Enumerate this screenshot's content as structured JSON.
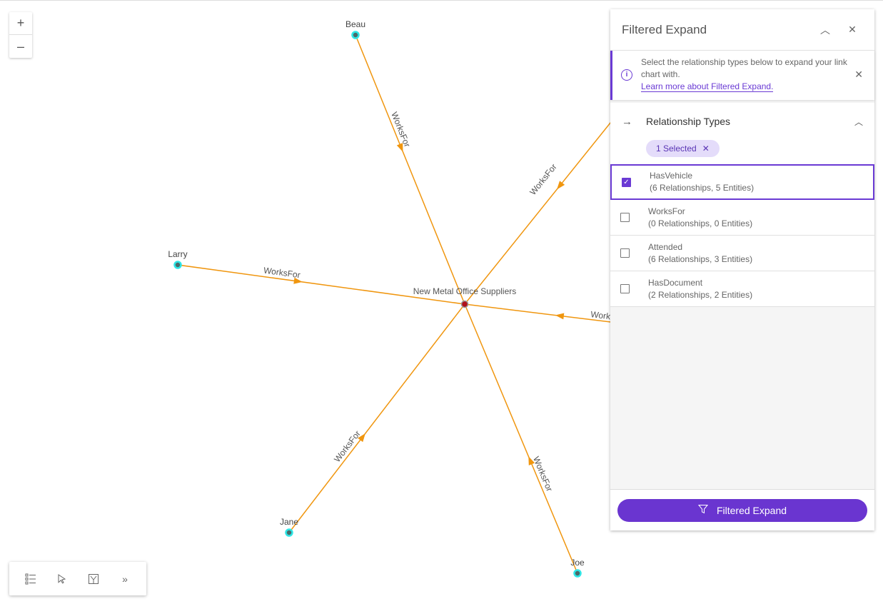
{
  "graph": {
    "center": "New Metal Office Suppliers",
    "nodes": [
      "Beau",
      "Larry",
      "Jane",
      "Joe",
      "",
      ""
    ],
    "edge_label": "WorksFor",
    "edge_color": "#f0960f",
    "node_color": "#2ee6e6",
    "center_color": "#b0111a"
  },
  "zoom": {
    "in": "+",
    "out": "–"
  },
  "toolbar": {
    "icons": [
      "legend-icon",
      "select-icon",
      "layout-icon",
      "expand-icon"
    ],
    "more": "»"
  },
  "panel": {
    "title": "Filtered Expand",
    "notice": {
      "text": "Select the relationship types below to expand your link chart with.",
      "link": "Learn more about Filtered Expand."
    },
    "section": {
      "title": "Relationship Types",
      "chip": "1 Selected",
      "items": [
        {
          "name": "HasVehicle",
          "detail": "(6 Relationships, 5 Entities)",
          "checked": true
        },
        {
          "name": "WorksFor",
          "detail": "(0 Relationships, 0 Entities)",
          "checked": false
        },
        {
          "name": "Attended",
          "detail": "(6 Relationships, 3 Entities)",
          "checked": false
        },
        {
          "name": "HasDocument",
          "detail": "(2 Relationships, 2 Entities)",
          "checked": false
        }
      ]
    },
    "button": "Filtered Expand",
    "accent": "#6a35d0"
  }
}
